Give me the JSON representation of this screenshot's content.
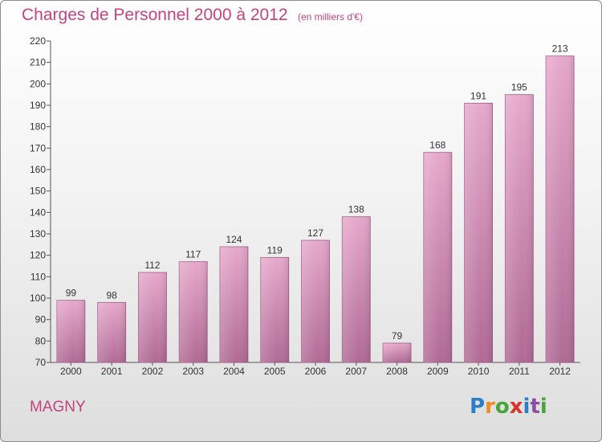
{
  "header": {
    "title": "Charges de Personnel 2000 à 2012",
    "unit_note": "(en milliers d'€)"
  },
  "footer": {
    "commune": "MAGNY",
    "logo": {
      "letters": [
        "P",
        "r",
        "o",
        "x",
        "i",
        "t",
        "i"
      ],
      "colors": [
        "#2f7fc8",
        "#f08c1e",
        "#4aa43c",
        "#d7322c",
        "#2f7fc8",
        "#8b4fa0",
        "#4aa43c"
      ]
    }
  },
  "colors": {
    "accent": "#c2437d",
    "bar_top": "#e6a8cb",
    "bar_bottom": "#b06a95",
    "bar_edge": "#9e5a86"
  },
  "chart_data": {
    "type": "bar",
    "title": "Charges de Personnel 2000 à 2012",
    "subtitle": "(en milliers d'€)",
    "categories": [
      "2000",
      "2001",
      "2002",
      "2003",
      "2004",
      "2005",
      "2006",
      "2007",
      "2008",
      "2009",
      "2010",
      "2011",
      "2012"
    ],
    "values": [
      99,
      98,
      112,
      117,
      124,
      119,
      127,
      138,
      79,
      168,
      191,
      195,
      213
    ],
    "ylim": [
      70,
      220
    ],
    "yticks": [
      70,
      80,
      90,
      100,
      110,
      120,
      130,
      140,
      150,
      160,
      170,
      180,
      190,
      200,
      210,
      220
    ],
    "grid": false,
    "legend": "none",
    "data_labels": true
  }
}
